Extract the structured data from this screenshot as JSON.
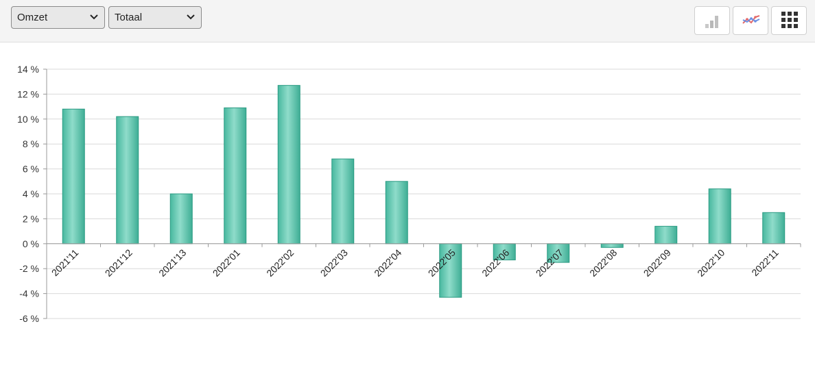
{
  "toolbar": {
    "measure_select": {
      "value": "Omzet",
      "icon": "chevron-down-icon"
    },
    "group_select": {
      "value": "Totaal",
      "icon": "chevron-down-icon"
    },
    "buttons": [
      {
        "name": "bar-chart-button",
        "icon": "bar-chart-icon"
      },
      {
        "name": "line-chart-button",
        "icon": "line-chart-icon"
      },
      {
        "name": "table-view-button",
        "icon": "grid-icon"
      }
    ]
  },
  "colors": {
    "bar_fill": "#5cc4ad",
    "bar_stroke": "#2a9a82",
    "grid": "#d9d9d9",
    "axis": "#999999"
  },
  "chart_data": {
    "type": "bar",
    "categories": [
      "2021'11",
      "2021'12",
      "2021'13",
      "2022'01",
      "2022'02",
      "2022'03",
      "2022'04",
      "2022'05",
      "2022'06",
      "2022'07",
      "2022'08",
      "2022'09",
      "2022'10",
      "2022'11"
    ],
    "values": [
      10.8,
      10.2,
      4.0,
      10.9,
      12.7,
      6.8,
      5.0,
      -4.3,
      -1.3,
      -1.5,
      -0.3,
      1.4,
      4.4,
      2.5
    ],
    "ylim": [
      -6,
      14
    ],
    "yticks": [
      14,
      12,
      10,
      8,
      6,
      4,
      2,
      0,
      -2,
      -4,
      -6
    ],
    "ytick_labels": [
      "14 %",
      "12 %",
      "10 %",
      "8 %",
      "6 %",
      "4 %",
      "2 %",
      "0 %",
      "-2 %",
      "-4 %",
      "-6 %"
    ],
    "grid": true,
    "legend": "none"
  }
}
